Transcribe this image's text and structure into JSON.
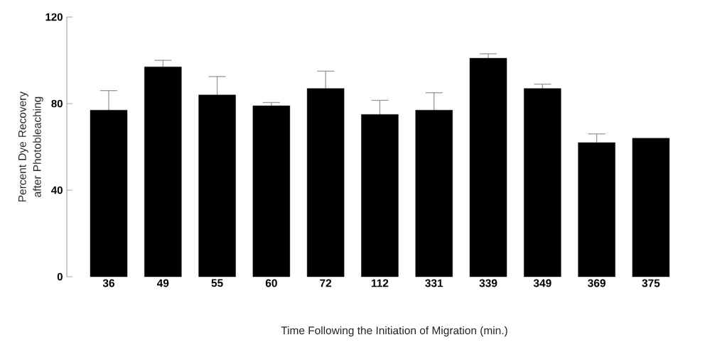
{
  "chart_data": {
    "type": "bar",
    "xlabel": "Time Following the Initiation of Migration (min.)",
    "ylabel": "Percent Dye Recovery after Photobleaching",
    "categories": [
      "36",
      "49",
      "55",
      "60",
      "72",
      "112",
      "331",
      "339",
      "349",
      "369",
      "375"
    ],
    "values": [
      77,
      97,
      84,
      79,
      87,
      75,
      77,
      101,
      87,
      62,
      64
    ],
    "errors": [
      9,
      3,
      8.5,
      1.5,
      8,
      6.5,
      8,
      2,
      2,
      4,
      null
    ],
    "color": "#000000",
    "ylim": [
      0,
      120
    ],
    "yticks": [
      0,
      40,
      80,
      120
    ]
  }
}
